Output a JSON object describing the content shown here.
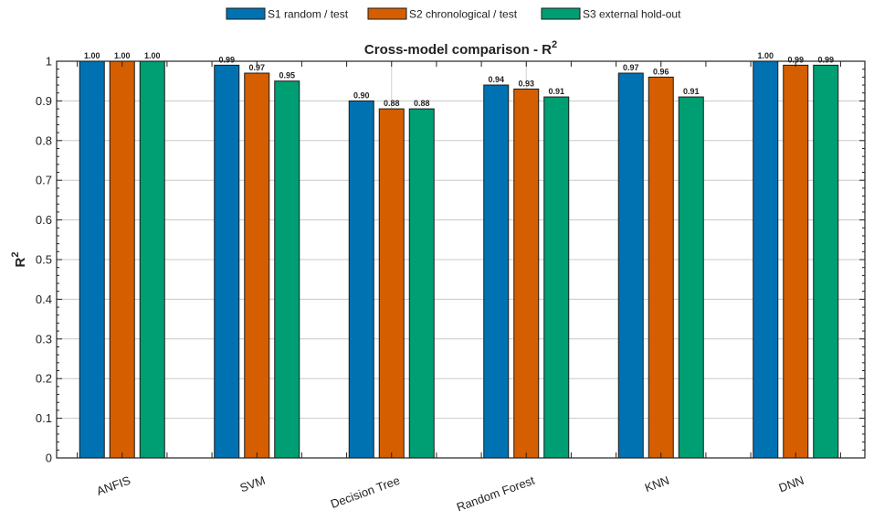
{
  "chart_data": {
    "type": "bar",
    "title": "Cross-model comparison - R",
    "title_superscript": "2",
    "xlabel": "",
    "ylabel": "R",
    "ylabel_superscript": "2",
    "ylim": [
      0,
      1
    ],
    "yticks": [
      "0",
      "0.1",
      "0.2",
      "0.3",
      "0.4",
      "0.5",
      "0.6",
      "0.7",
      "0.8",
      "0.9",
      "1"
    ],
    "categories": [
      "ANFIS",
      "SVM",
      "Decision Tree",
      "Random Forest",
      "KNN",
      "DNN"
    ],
    "series": [
      {
        "name": "S1 random / test",
        "color": "#0072B2",
        "values": [
          1.0,
          0.99,
          0.9,
          0.94,
          0.97,
          1.0
        ],
        "labels": [
          "1.00",
          "0.99",
          "0.90",
          "0.94",
          "0.97",
          "1.00"
        ]
      },
      {
        "name": "S2 chronological / test",
        "color": "#D55E00",
        "values": [
          1.0,
          0.97,
          0.88,
          0.93,
          0.96,
          0.99
        ],
        "labels": [
          "1.00",
          "0.97",
          "0.88",
          "0.93",
          "0.96",
          "0.99"
        ]
      },
      {
        "name": "S3 external hold-out",
        "color": "#009E73",
        "values": [
          1.0,
          0.95,
          0.88,
          0.91,
          0.91,
          0.99
        ],
        "labels": [
          "1.00",
          "0.95",
          "0.88",
          "0.91",
          "0.91",
          "0.99"
        ]
      }
    ],
    "grid": true,
    "legend_position": "top-center"
  }
}
